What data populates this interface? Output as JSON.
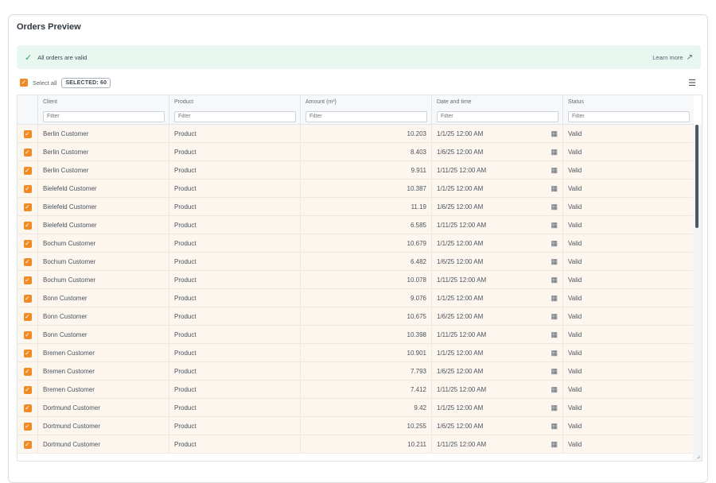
{
  "card": {
    "title": "Orders Preview"
  },
  "banner": {
    "message": "All orders are valid",
    "learn_more": "Learn more",
    "icon": "check-icon",
    "link_icon": "external-arrow-icon"
  },
  "toolbar": {
    "select_all": "Select all",
    "selected_badge": "SELECTED: 60",
    "settings_icon": "column-settings-icon"
  },
  "columns": [
    {
      "label": "Client",
      "filter_placeholder": "Filter"
    },
    {
      "label": "Product",
      "filter_placeholder": "Filter"
    },
    {
      "label": "Amount (m³)",
      "filter_placeholder": "Filter"
    },
    {
      "label": "Date and time",
      "filter_placeholder": "Filter"
    },
    {
      "label": "Status",
      "filter_placeholder": "Filter"
    }
  ],
  "colors": {
    "accent": "#f08a24",
    "valid_banner_bg": "#e9f7f1",
    "row_bg": "#fcf6ef"
  },
  "rows": [
    {
      "client": "Berlin Customer",
      "product": "Product",
      "amount": "10.203",
      "date": "1/1/25 12:00 AM",
      "status": "Valid"
    },
    {
      "client": "Berlin Customer",
      "product": "Product",
      "amount": "8.403",
      "date": "1/6/25 12:00 AM",
      "status": "Valid"
    },
    {
      "client": "Berlin Customer",
      "product": "Product",
      "amount": "9.911",
      "date": "1/11/25 12:00 AM",
      "status": "Valid"
    },
    {
      "client": "Bielefeld Customer",
      "product": "Product",
      "amount": "10.387",
      "date": "1/1/25 12:00 AM",
      "status": "Valid"
    },
    {
      "client": "Bielefeld Customer",
      "product": "Product",
      "amount": "11.19",
      "date": "1/6/25 12:00 AM",
      "status": "Valid"
    },
    {
      "client": "Bielefeld Customer",
      "product": "Product",
      "amount": "6.585",
      "date": "1/11/25 12:00 AM",
      "status": "Valid"
    },
    {
      "client": "Bochum Customer",
      "product": "Product",
      "amount": "10.679",
      "date": "1/1/25 12:00 AM",
      "status": "Valid"
    },
    {
      "client": "Bochum Customer",
      "product": "Product",
      "amount": "6.482",
      "date": "1/6/25 12:00 AM",
      "status": "Valid"
    },
    {
      "client": "Bochum Customer",
      "product": "Product",
      "amount": "10.078",
      "date": "1/11/25 12:00 AM",
      "status": "Valid"
    },
    {
      "client": "Bonn Customer",
      "product": "Product",
      "amount": "9.076",
      "date": "1/1/25 12:00 AM",
      "status": "Valid"
    },
    {
      "client": "Bonn Customer",
      "product": "Product",
      "amount": "10.675",
      "date": "1/6/25 12:00 AM",
      "status": "Valid"
    },
    {
      "client": "Bonn Customer",
      "product": "Product",
      "amount": "10.398",
      "date": "1/11/25 12:00 AM",
      "status": "Valid"
    },
    {
      "client": "Bremen Customer",
      "product": "Product",
      "amount": "10.901",
      "date": "1/1/25 12:00 AM",
      "status": "Valid"
    },
    {
      "client": "Bremen Customer",
      "product": "Product",
      "amount": "7.793",
      "date": "1/6/25 12:00 AM",
      "status": "Valid"
    },
    {
      "client": "Bremen Customer",
      "product": "Product",
      "amount": "7.412",
      "date": "1/11/25 12:00 AM",
      "status": "Valid"
    },
    {
      "client": "Dortmund Customer",
      "product": "Product",
      "amount": "9.42",
      "date": "1/1/25 12:00 AM",
      "status": "Valid"
    },
    {
      "client": "Dortmund Customer",
      "product": "Product",
      "amount": "10.255",
      "date": "1/6/25 12:00 AM",
      "status": "Valid"
    },
    {
      "client": "Dortmund Customer",
      "product": "Product",
      "amount": "10.211",
      "date": "1/11/25 12:00 AM",
      "status": "Valid"
    }
  ]
}
